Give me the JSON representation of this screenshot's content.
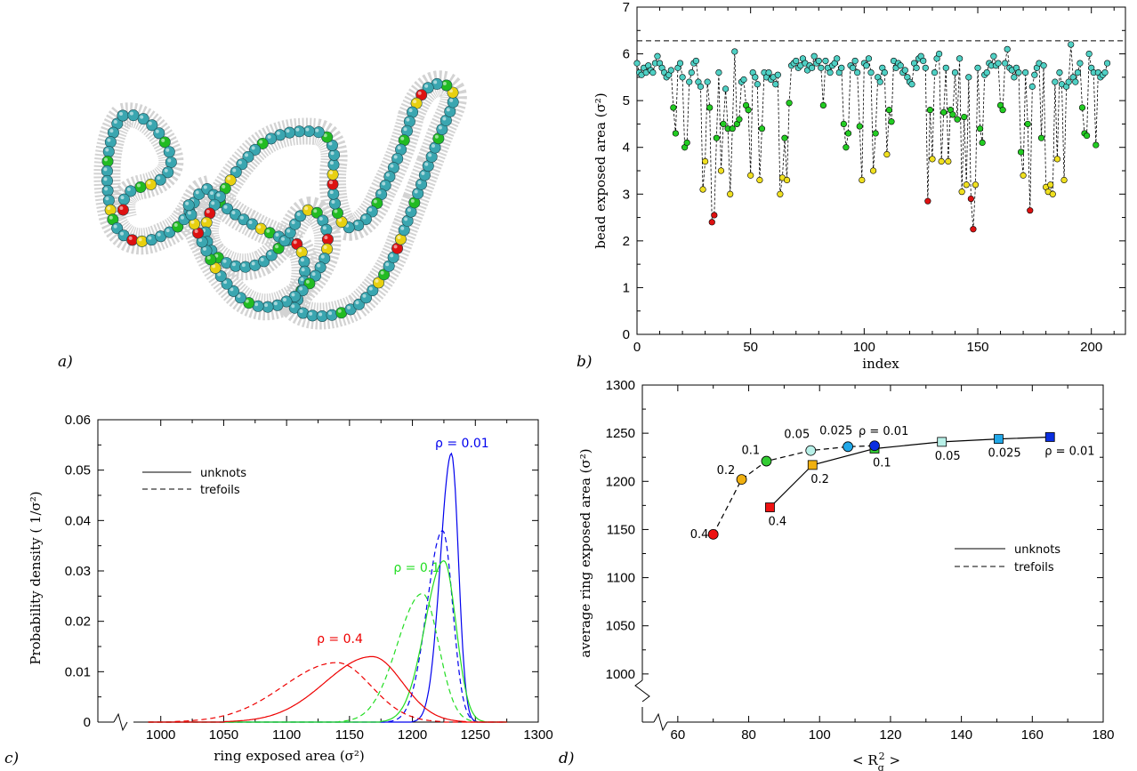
{
  "panel_labels": [
    "a)",
    "b)",
    "c)",
    "d)"
  ],
  "chart_data": [
    {
      "panel": "a)",
      "type": "other",
      "description_visible": "rendering of a ring polymer of beads (teal, green, yellow, red) surrounded by a dotted surface",
      "colors": {
        "teal": "#3aa6b0",
        "green": "#22bb22",
        "yellow": "#e8d010",
        "red": "#dd1111"
      }
    },
    {
      "panel": "b)",
      "type": "scatter",
      "xlabel": "index",
      "ylabel": "bead exposed area (σ²)",
      "xlim": [
        0,
        215
      ],
      "ylim": [
        0,
        7
      ],
      "xticks": [
        "0",
        "50",
        "100",
        "150",
        "200"
      ],
      "yticks": [
        "0",
        "1",
        "2",
        "3",
        "4",
        "5",
        "6",
        "7"
      ],
      "reference_line_y": 6.28,
      "marker_colors": {
        "high": "#4fd0c4",
        "mid": "#22cc22",
        "low": "#f0e020",
        "lowest": "#dd1111"
      },
      "values": [
        5.8,
        5.6,
        5.55,
        5.7,
        5.6,
        5.75,
        5.65,
        5.6,
        5.8,
        5.95,
        5.8,
        5.7,
        5.6,
        5.5,
        5.55,
        5.65,
        4.85,
        4.3,
        5.7,
        5.8,
        5.5,
        4.0,
        4.1,
        5.4,
        5.6,
        5.8,
        5.85,
        5.4,
        5.3,
        3.1,
        3.7,
        5.4,
        4.85,
        2.4,
        2.55,
        4.2,
        5.6,
        3.5,
        4.5,
        5.25,
        4.4,
        3.0,
        4.4,
        6.05,
        4.5,
        4.6,
        5.4,
        5.45,
        4.9,
        4.8,
        3.4,
        5.6,
        5.5,
        5.35,
        3.3,
        4.4,
        5.6,
        5.5,
        5.6,
        5.45,
        5.5,
        5.35,
        5.55,
        3.0,
        3.35,
        4.2,
        3.3,
        4.95,
        5.75,
        5.8,
        5.85,
        5.7,
        5.75,
        5.9,
        5.8,
        5.65,
        5.75,
        5.7,
        5.95,
        5.8,
        5.85,
        5.7,
        4.9,
        5.85,
        5.7,
        5.6,
        5.75,
        5.8,
        5.9,
        5.6,
        5.7,
        4.5,
        4.0,
        4.3,
        5.75,
        5.7,
        5.85,
        5.6,
        4.45,
        3.3,
        5.8,
        5.75,
        5.9,
        5.6,
        3.5,
        4.3,
        5.5,
        5.4,
        5.7,
        5.6,
        3.85,
        4.8,
        4.55,
        5.85,
        5.7,
        5.8,
        5.75,
        5.6,
        5.65,
        5.5,
        5.4,
        5.35,
        5.8,
        5.7,
        5.9,
        5.95,
        5.85,
        5.7,
        2.85,
        4.8,
        3.75,
        5.6,
        5.9,
        6.0,
        3.7,
        4.75,
        5.7,
        3.7,
        4.8,
        4.7,
        5.6,
        4.6,
        5.9,
        3.05,
        4.65,
        3.2,
        5.5,
        2.9,
        2.25,
        3.2,
        5.7,
        4.4,
        4.1,
        5.55,
        5.6,
        5.8,
        5.75,
        5.95,
        5.75,
        5.8,
        4.9,
        4.8,
        5.8,
        6.1,
        5.7,
        5.65,
        5.5,
        5.7,
        5.6,
        3.9,
        3.4,
        5.6,
        4.5,
        2.65,
        5.3,
        5.55,
        5.7,
        5.8,
        4.2,
        5.75,
        3.15,
        3.05,
        3.2,
        3.0,
        5.4,
        3.75,
        5.6,
        5.35,
        3.3,
        5.3,
        5.4,
        6.2,
        5.5,
        5.4,
        5.6,
        5.8,
        4.85,
        4.3,
        4.25,
        6.0,
        5.7,
        5.6,
        4.05,
        5.6,
        5.5,
        5.55,
        5.6,
        5.8
      ]
    },
    {
      "panel": "c)",
      "type": "line",
      "xlabel": "ring exposed area (σ²)",
      "ylabel": "Probability density ( 1/σ²)",
      "xlim": [
        950,
        1300
      ],
      "ylim": [
        0,
        0.06
      ],
      "xticks": [
        "1000",
        "1050",
        "1100",
        "1150",
        "1200",
        "1250",
        "1300"
      ],
      "yticks": [
        "0",
        "0.01",
        "0.02",
        "0.03",
        "0.04",
        "0.05",
        "0.06"
      ],
      "axis_break_x": 975,
      "legend": [
        {
          "label": "unknots",
          "style": "solid"
        },
        {
          "label": "trefoils",
          "style": "dashed"
        }
      ],
      "series_labels": [
        {
          "text": "ρ = 0.01",
          "color": "#0000ee",
          "x": 1218,
          "y": 0.0545
        },
        {
          "text": "ρ = 0.1",
          "color": "#22dd22",
          "x": 1185,
          "y": 0.0298
        },
        {
          "text": "ρ = 0.4",
          "color": "#ee0000",
          "x": 1124,
          "y": 0.0157
        }
      ],
      "series": [
        {
          "rho": "0.01",
          "topology": "unknots",
          "color": "#0000ee",
          "dash": false,
          "mean": 1231,
          "sd": 7,
          "peak": 0.0533
        },
        {
          "rho": "0.01",
          "topology": "trefoils",
          "color": "#0000ee",
          "dash": true,
          "mean": 1224,
          "sd": 10,
          "peak": 0.038
        },
        {
          "rho": "0.1",
          "topology": "unknots",
          "color": "#22dd22",
          "dash": false,
          "mean": 1225,
          "sd": 12,
          "peak": 0.032
        },
        {
          "rho": "0.1",
          "topology": "trefoils",
          "color": "#22dd22",
          "dash": true,
          "mean": 1208,
          "sd": 16,
          "peak": 0.0255
        },
        {
          "rho": "0.4",
          "topology": "unknots",
          "color": "#ee0000",
          "dash": false,
          "mean": 1168,
          "sd": 30,
          "peak": 0.013
        },
        {
          "rho": "0.4",
          "topology": "trefoils",
          "color": "#ee0000",
          "dash": true,
          "mean": 1140,
          "sd": 34,
          "peak": 0.0118
        }
      ]
    },
    {
      "panel": "d)",
      "type": "scatter",
      "xlabel": "< R_g² >",
      "xlabel_text": "< R",
      "xlabel_sub": "g",
      "xlabel_sup": "2",
      "xlabel_close": " >",
      "ylabel": "average ring exposed area (σ²)",
      "xlim": [
        50,
        180
      ],
      "ylim": [
        950,
        1300
      ],
      "xticks": [
        "60",
        "80",
        "100",
        "120",
        "140",
        "160",
        "180"
      ],
      "yticks": [
        "1000",
        "1050",
        "1100",
        "1150",
        "1200",
        "1250",
        "1300"
      ],
      "legend": [
        {
          "label": "unknots",
          "style": "solid"
        },
        {
          "label": "trefoils",
          "style": "dashed"
        }
      ],
      "series": [
        {
          "name": "unknots",
          "marker": "square",
          "dash": false,
          "points": [
            {
              "x": 86,
              "y": 1173,
              "label": "0.4",
              "color": "#ee1111"
            },
            {
              "x": 98,
              "y": 1217,
              "label": "0.2",
              "color": "#f0b010"
            },
            {
              "x": 115.5,
              "y": 1234,
              "label": "0.1",
              "color": "#33cc33"
            },
            {
              "x": 134.5,
              "y": 1241,
              "label": "0.05",
              "color": "#b8f0e8"
            },
            {
              "x": 150.5,
              "y": 1244,
              "label": "0.025",
              "color": "#22a8e8"
            },
            {
              "x": 165,
              "y": 1246,
              "label": "ρ = 0.01",
              "color": "#0a2ee0"
            }
          ]
        },
        {
          "name": "trefoils",
          "marker": "circle",
          "dash": true,
          "points": [
            {
              "x": 70,
              "y": 1145,
              "label": "0.4",
              "color": "#ee1111"
            },
            {
              "x": 78,
              "y": 1202,
              "label": "0.2",
              "color": "#f0b010"
            },
            {
              "x": 85,
              "y": 1221,
              "label": "0.1",
              "color": "#33cc33"
            },
            {
              "x": 97.5,
              "y": 1232,
              "label": "0.05",
              "color": "#b8f0e8"
            },
            {
              "x": 108,
              "y": 1236,
              "label": "0.025",
              "color": "#22a8e8"
            },
            {
              "x": 115.5,
              "y": 1237,
              "label": "ρ = 0.01",
              "color": "#0a2ee0"
            }
          ]
        }
      ]
    }
  ]
}
